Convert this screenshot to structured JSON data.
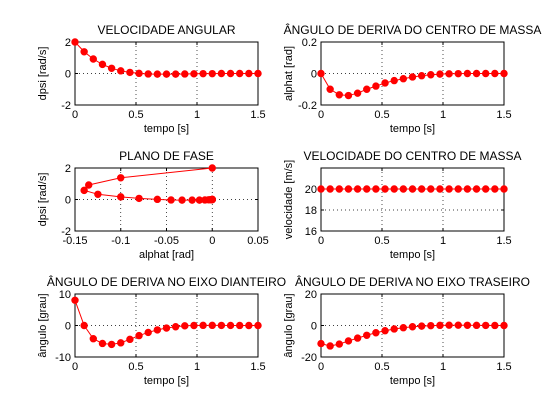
{
  "chart_data": [
    {
      "type": "line",
      "title": "VELOCIDADE ANGULAR",
      "xlabel": "tempo [s]",
      "ylabel": "dpsi [rad/s]",
      "xlim": [
        0,
        1.5
      ],
      "ylim": [
        -2,
        2
      ],
      "xticks": [
        0,
        0.5,
        1,
        1.5
      ],
      "xticklabels": [
        "0",
        "0.5",
        "1",
        "1.5"
      ],
      "yticks": [
        -2,
        0,
        2
      ],
      "yticklabels": [
        "-2",
        "0",
        "2"
      ],
      "grid": true,
      "color": "#ff0000",
      "series": [
        {
          "x": [
            0,
            0.075,
            0.15,
            0.225,
            0.3,
            0.375,
            0.45,
            0.525,
            0.6,
            0.675,
            0.75,
            0.825,
            0.9,
            0.975,
            1.05,
            1.125,
            1.2,
            1.275,
            1.35,
            1.425,
            1.5
          ],
          "y": [
            2.0,
            1.38,
            0.92,
            0.58,
            0.33,
            0.17,
            0.07,
            0.01,
            -0.03,
            -0.04,
            -0.04,
            -0.04,
            -0.03,
            -0.02,
            -0.01,
            -0.01,
            0,
            0,
            0,
            0,
            0
          ]
        }
      ]
    },
    {
      "type": "line",
      "title": "ÂNGULO DE DERIVA DO CENTRO DE MASSA",
      "xlabel": "tempo [s]",
      "ylabel": "alphat [rad]",
      "xlim": [
        0,
        1.5
      ],
      "ylim": [
        -0.2,
        0.2
      ],
      "xticks": [
        0,
        0.5,
        1,
        1.5
      ],
      "xticklabels": [
        "0",
        "0.5",
        "1",
        "1.5"
      ],
      "yticks": [
        -0.2,
        0,
        0.2
      ],
      "yticklabels": [
        "-0.2",
        "0",
        "0.2"
      ],
      "grid": true,
      "color": "#ff0000",
      "series": [
        {
          "x": [
            0,
            0.075,
            0.15,
            0.225,
            0.3,
            0.375,
            0.45,
            0.525,
            0.6,
            0.675,
            0.75,
            0.825,
            0.9,
            0.975,
            1.05,
            1.125,
            1.2,
            1.275,
            1.35,
            1.425,
            1.5
          ],
          "y": [
            0,
            -0.1,
            -0.135,
            -0.14,
            -0.125,
            -0.1,
            -0.08,
            -0.06,
            -0.045,
            -0.033,
            -0.022,
            -0.014,
            -0.008,
            -0.004,
            -0.002,
            -0.001,
            0,
            0,
            0,
            0,
            0
          ]
        }
      ]
    },
    {
      "type": "line",
      "title": "PLANO DE FASE",
      "xlabel": "alphat [rad]",
      "ylabel": "dpsi [rad/s]",
      "xlim": [
        -0.15,
        0.05
      ],
      "ylim": [
        -2,
        2
      ],
      "xticks": [
        -0.15,
        -0.1,
        -0.05,
        0,
        0.05
      ],
      "xticklabels": [
        "-0.15",
        "-0.1",
        "-0.05",
        "0",
        "0.05"
      ],
      "yticks": [
        -2,
        0,
        2
      ],
      "yticklabels": [
        "-2",
        "0",
        "2"
      ],
      "grid": true,
      "color": "#ff0000",
      "series": [
        {
          "x": [
            0,
            -0.1,
            -0.135,
            -0.14,
            -0.125,
            -0.1,
            -0.08,
            -0.06,
            -0.045,
            -0.033,
            -0.022,
            -0.014,
            -0.008,
            -0.004,
            -0.002,
            -0.001,
            0,
            0,
            0,
            0,
            0
          ],
          "y": [
            2.0,
            1.38,
            0.92,
            0.58,
            0.33,
            0.17,
            0.07,
            0.01,
            -0.03,
            -0.04,
            -0.04,
            -0.04,
            -0.03,
            -0.02,
            -0.01,
            -0.01,
            0,
            0,
            0,
            0,
            0
          ]
        }
      ]
    },
    {
      "type": "line",
      "title": "VELOCIDADE DO CENTRO DE MASSA",
      "xlabel": "tempo [s]",
      "ylabel": "velocidade [m/s]",
      "xlim": [
        0,
        1.5
      ],
      "ylim": [
        16,
        22
      ],
      "xticks": [
        0,
        0.5,
        1,
        1.5
      ],
      "xticklabels": [
        "0",
        "0.5",
        "1",
        "1.5"
      ],
      "yticks": [
        16,
        18,
        20
      ],
      "yticklabels": [
        "16",
        "18",
        "20"
      ],
      "grid": true,
      "color": "#ff0000",
      "series": [
        {
          "x": [
            0,
            0.075,
            0.15,
            0.225,
            0.3,
            0.375,
            0.45,
            0.525,
            0.6,
            0.675,
            0.75,
            0.825,
            0.9,
            0.975,
            1.05,
            1.125,
            1.2,
            1.275,
            1.35,
            1.425,
            1.5
          ],
          "y": [
            20,
            20,
            20,
            20,
            20,
            20,
            20,
            20,
            20,
            20,
            20,
            20,
            20,
            20,
            20,
            20,
            20,
            20,
            20,
            20,
            20
          ]
        }
      ]
    },
    {
      "type": "line",
      "title": "ÂNGULO DE DERIVA NO EIXO DIANTEIRO",
      "xlabel": "tempo [s]",
      "ylabel": "ângulo [grau]",
      "xlim": [
        0,
        1.5
      ],
      "ylim": [
        -10,
        10
      ],
      "xticks": [
        0,
        0.5,
        1,
        1.5
      ],
      "xticklabels": [
        "0",
        "0.5",
        "1",
        "1.5"
      ],
      "yticks": [
        -10,
        0,
        10
      ],
      "yticklabels": [
        "-10",
        "0",
        "10"
      ],
      "grid": true,
      "color": "#ff0000",
      "series": [
        {
          "x": [
            0,
            0.075,
            0.15,
            0.225,
            0.3,
            0.375,
            0.45,
            0.525,
            0.6,
            0.675,
            0.75,
            0.825,
            0.9,
            0.975,
            1.05,
            1.125,
            1.2,
            1.275,
            1.35,
            1.425,
            1.5
          ],
          "y": [
            8.0,
            0.0,
            -4.2,
            -5.7,
            -6.0,
            -5.5,
            -4.4,
            -3.2,
            -2.2,
            -1.4,
            -0.8,
            -0.4,
            -0.1,
            0.0,
            0.05,
            0.05,
            0.03,
            0.02,
            0.01,
            0,
            0
          ]
        }
      ]
    },
    {
      "type": "line",
      "title": "ÂNGULO DE DERIVA NO EIXO TRASEIRO",
      "xlabel": "tempo [s]",
      "ylabel": "ângulo [grau]",
      "xlim": [
        0,
        1.5
      ],
      "ylim": [
        -20,
        20
      ],
      "xticks": [
        0,
        0.5,
        1,
        1.5
      ],
      "xticklabels": [
        "0",
        "0.5",
        "1",
        "1.5"
      ],
      "yticks": [
        -20,
        0,
        20
      ],
      "yticklabels": [
        "-20",
        "0",
        "20"
      ],
      "grid": true,
      "color": "#ff0000",
      "series": [
        {
          "x": [
            0,
            0.075,
            0.15,
            0.225,
            0.3,
            0.375,
            0.45,
            0.525,
            0.6,
            0.675,
            0.75,
            0.825,
            0.9,
            0.975,
            1.05,
            1.125,
            1.2,
            1.275,
            1.35,
            1.425,
            1.5
          ],
          "y": [
            -11.5,
            -13.0,
            -11.8,
            -9.8,
            -8.0,
            -6.2,
            -4.6,
            -3.3,
            -2.2,
            -1.4,
            -0.8,
            -0.4,
            -0.1,
            0.1,
            0.2,
            0.2,
            0.15,
            0.1,
            0.05,
            0.02,
            0
          ]
        }
      ]
    }
  ]
}
